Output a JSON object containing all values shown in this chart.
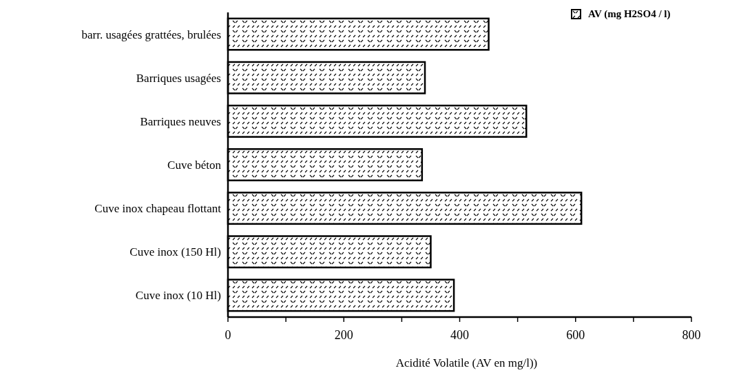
{
  "chart_data": {
    "type": "bar",
    "orientation": "horizontal",
    "xlabel": "Acidité Volatile (AV en mg/l))",
    "categories": [
      "barr. usagées grattées, brulées",
      "Barriques usagées",
      "Barriques neuves",
      "Cuve béton",
      "Cuve inox chapeau flottant",
      "Cuve inox (150 Hl)",
      "Cuve inox (10 Hl)"
    ],
    "series": [
      {
        "name": "AV (mg H2SO4 / l)",
        "color": "#000000",
        "values": [
          450,
          340,
          515,
          335,
          610,
          350,
          390
        ]
      }
    ],
    "xlim": [
      0,
      800
    ],
    "xticks": [
      0,
      {
        "value": 100,
        "label": null
      },
      200,
      {
        "value": 300,
        "label": null
      },
      400,
      {
        "value": 500,
        "label": null
      },
      600,
      {
        "value": 700,
        "label": null
      },
      800
    ],
    "grid": false,
    "legend": "top right"
  }
}
